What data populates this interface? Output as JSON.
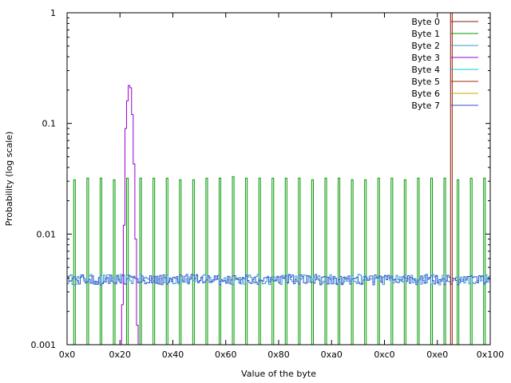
{
  "chart_data": {
    "type": "line",
    "style": "histogram steps",
    "xlabel": "Value of the byte",
    "ylabel": "Probability (log scale)",
    "y_scale": "log",
    "xlim": [
      0,
      256
    ],
    "ylim": [
      0.001,
      1
    ],
    "x_ticks": [
      {
        "value": 0,
        "label": "0x0"
      },
      {
        "value": 32,
        "label": "0x20"
      },
      {
        "value": 64,
        "label": "0x40"
      },
      {
        "value": 96,
        "label": "0x60"
      },
      {
        "value": 128,
        "label": "0x80"
      },
      {
        "value": 160,
        "label": "0xa0"
      },
      {
        "value": 192,
        "label": "0xc0"
      },
      {
        "value": 224,
        "label": "0xe0"
      },
      {
        "value": 256,
        "label": "0x100"
      }
    ],
    "y_ticks": [
      {
        "value": 0.001,
        "label": "0.001"
      },
      {
        "value": 0.01,
        "label": "0.01"
      },
      {
        "value": 0.1,
        "label": "0.1"
      },
      {
        "value": 1,
        "label": "1"
      }
    ],
    "grid": false,
    "legend_position": "top-right",
    "series": [
      {
        "name": "Byte 0",
        "color": "#8b1a0e",
        "x": [
          232,
          233
        ],
        "values": [
          1.0,
          1.0
        ]
      },
      {
        "name": "Byte 1",
        "color": "#009900",
        "x": [
          4,
          12,
          20,
          28,
          36,
          44,
          52,
          60,
          68,
          76,
          84,
          92,
          100,
          108,
          116,
          124,
          132,
          140,
          148,
          156,
          164,
          172,
          180,
          188,
          196,
          204,
          212,
          220,
          228,
          236,
          244,
          252
        ],
        "values": [
          0.031,
          0.032,
          0.032,
          0.031,
          0.032,
          0.032,
          0.032,
          0.032,
          0.031,
          0.031,
          0.032,
          0.032,
          0.033,
          0.032,
          0.032,
          0.032,
          0.032,
          0.032,
          0.031,
          0.032,
          0.032,
          0.031,
          0.031,
          0.032,
          0.032,
          0.031,
          0.032,
          0.032,
          0.032,
          0.031,
          0.032,
          0.032
        ]
      },
      {
        "name": "Byte 2",
        "color": "#3399cc",
        "x": [
          0,
          256
        ],
        "values": [
          0.0039,
          0.0039
        ]
      },
      {
        "name": "Byte 3",
        "color": "#9900cc",
        "x": [
          33,
          34,
          35,
          36,
          37,
          38,
          39,
          40,
          41,
          42
        ],
        "values": [
          0.0023,
          0.012,
          0.09,
          0.16,
          0.22,
          0.21,
          0.12,
          0.043,
          0.009,
          0.0015
        ]
      },
      {
        "name": "Byte 4",
        "color": "#00cccc",
        "x": [],
        "values": []
      },
      {
        "name": "Byte 5",
        "color": "#a0280e",
        "x": [
          233,
          234
        ],
        "values": [
          1.0,
          1.0
        ]
      },
      {
        "name": "Byte 6",
        "color": "#ccaa00",
        "x": [],
        "values": []
      },
      {
        "name": "Byte 7",
        "color": "#2b55cc",
        "x": [
          0,
          256
        ],
        "values": [
          0.0039,
          0.0039
        ]
      }
    ]
  }
}
